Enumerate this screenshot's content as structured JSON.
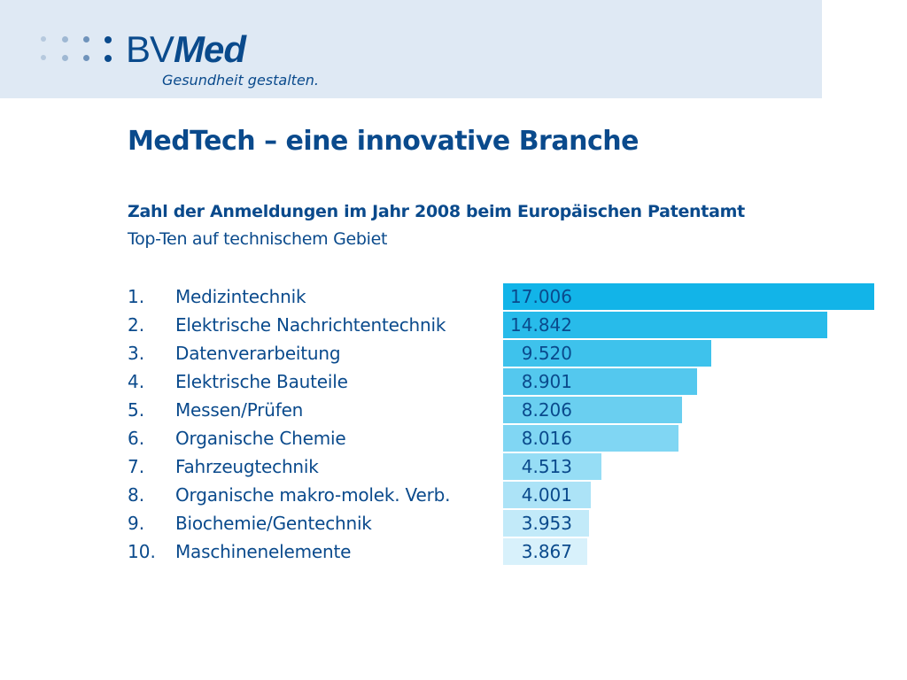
{
  "brand": {
    "logo_bv": "BV",
    "logo_med": "Med",
    "tagline": "Gesundheit gestalten."
  },
  "page": {
    "title": "MedTech – eine innovative Branche"
  },
  "colors": {
    "text": "#0a4a8c",
    "header_band": "#dfe9f4",
    "bar_strong": "#12b4e8",
    "bar_light": "#d8f1fb"
  },
  "chart_data": {
    "type": "bar",
    "orientation": "horizontal",
    "title": "Zahl der Anmeldungen im Jahr 2008 beim Europäischen Patentamt",
    "subtitle": "Top-Ten auf technischem Gebiet",
    "ranks": [
      "1.",
      "2.",
      "3.",
      "4.",
      "5.",
      "6.",
      "7.",
      "8.",
      "9.",
      "10."
    ],
    "categories": [
      "Medizintechnik",
      "Elektrische Nachrichtentechnik",
      "Datenverarbeitung",
      "Elektrische Bauteile",
      "Messen/Prüfen",
      "Organische Chemie",
      "Fahrzeugtechnik",
      "Organische makro-molek. Verb.",
      "Biochemie/Gentechnik",
      "Maschinenelemente"
    ],
    "values": [
      17006,
      14842,
      9520,
      8901,
      8206,
      8016,
      4513,
      4001,
      3953,
      3867
    ],
    "value_labels": [
      "17.006",
      "14.842",
      "9.520",
      "8.901",
      "8.206",
      "8.016",
      "4.513",
      "4.001",
      "3.953",
      "3.867"
    ],
    "xlim": [
      0,
      17006
    ],
    "grid": false,
    "legend": "none"
  }
}
